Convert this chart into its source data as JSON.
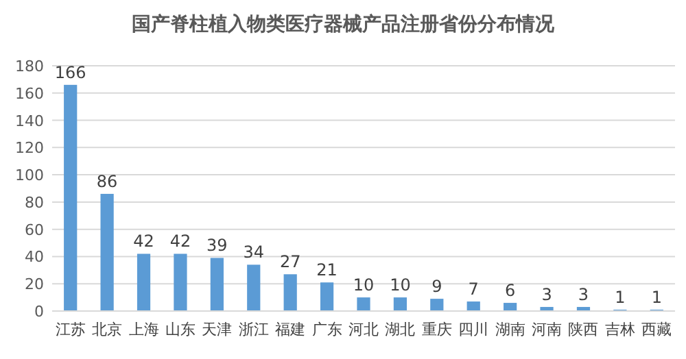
{
  "chart_data": {
    "type": "bar",
    "title": "国产脊柱植入物类医疗器械产品注册省份分布情况",
    "categories": [
      "江苏",
      "北京",
      "上海",
      "山东",
      "天津",
      "浙江",
      "福建",
      "广东",
      "河北",
      "湖北",
      "重庆",
      "四川",
      "湖南",
      "河南",
      "陕西",
      "吉林",
      "西藏"
    ],
    "values": [
      166,
      86,
      42,
      42,
      39,
      34,
      27,
      21,
      10,
      10,
      9,
      7,
      6,
      3,
      3,
      1,
      1
    ],
    "color": "#5b9bd5",
    "ylim": [
      0,
      180
    ],
    "yticks": [
      0,
      20,
      40,
      60,
      80,
      100,
      120,
      140,
      160,
      180
    ],
    "grid": "y",
    "data_labels": true
  }
}
